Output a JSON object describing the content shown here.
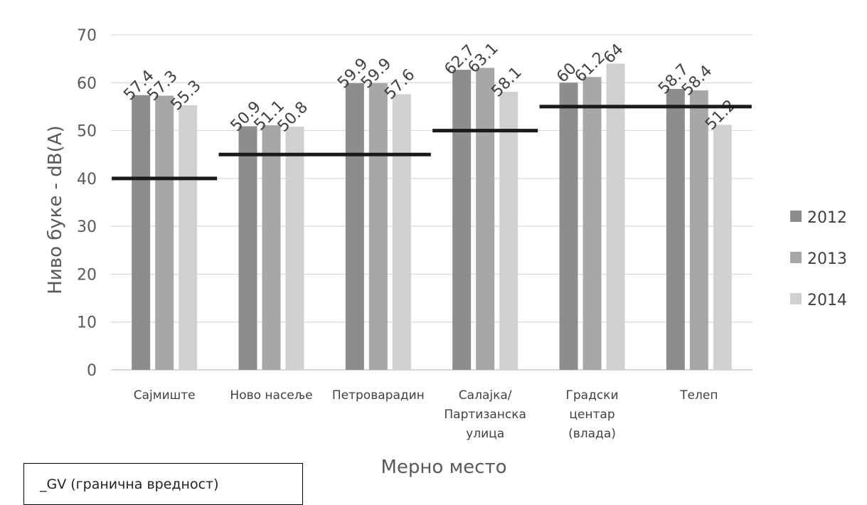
{
  "chart_data": {
    "type": "bar",
    "xlabel": "Мерно место",
    "ylabel": "Ниво буке - dB(A)",
    "ylim": [
      0,
      70
    ],
    "yticks": [
      0,
      10,
      20,
      30,
      40,
      50,
      60,
      70
    ],
    "grid": true,
    "legend_position": "right",
    "categories": [
      [
        "Сајмиште"
      ],
      [
        "Ново насеље"
      ],
      [
        "Петроварадин"
      ],
      [
        "Салајка/",
        "Партизанска",
        "улица"
      ],
      [
        "Градски",
        "центар",
        "(влада)"
      ],
      [
        "Телеп"
      ]
    ],
    "series": [
      {
        "name": "2012",
        "color": "#8c8d8f",
        "values": [
          57.4,
          50.9,
          59.9,
          62.7,
          60,
          58.7
        ],
        "labels": [
          "57.4",
          "50.9",
          "59.9",
          "62.7",
          "60",
          "58.7"
        ]
      },
      {
        "name": "2013",
        "color": "#a6a7a9",
        "values": [
          57.3,
          51.1,
          59.9,
          63.1,
          61.2,
          58.4
        ],
        "labels": [
          "57.3",
          "51.1",
          "59.9",
          "63.1",
          "61.2",
          "58.4"
        ]
      },
      {
        "name": "2014",
        "color": "#cfd0d1",
        "values": [
          55.3,
          50.8,
          57.6,
          58.1,
          64,
          51.2
        ],
        "labels": [
          "55.3",
          "50.8",
          "57.6",
          "58.1",
          "64",
          "51.2"
        ]
      }
    ],
    "limit_lines": [
      {
        "value": 40,
        "from_category": 0,
        "to_category": 0
      },
      {
        "value": 45,
        "from_category": 1,
        "to_category": 2
      },
      {
        "value": 50,
        "from_category": 3,
        "to_category": 3
      },
      {
        "value": 55,
        "from_category": 4,
        "to_category": 5
      }
    ],
    "limit_color": "#1a1a1a"
  },
  "note_box": {
    "text": "_GV (гранична вредност)"
  }
}
